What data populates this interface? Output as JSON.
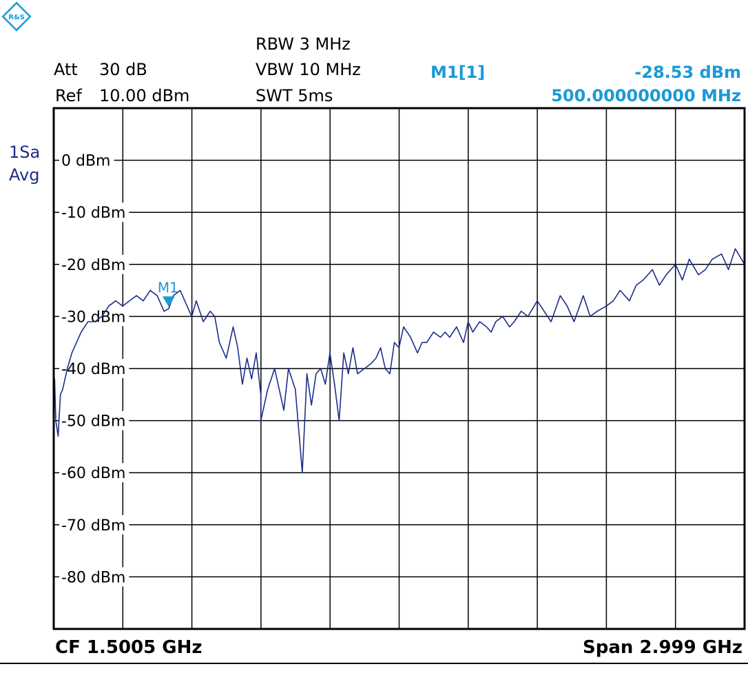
{
  "header": {
    "att_label": "Att",
    "att_value": "30 dB",
    "ref_label": "Ref",
    "ref_value": "10.00 dBm",
    "rbw": "RBW 3 MHz",
    "vbw": "VBW 10 MHz",
    "swt": "SWT 5ms",
    "marker_name": "M1[1]",
    "marker_level": "-28.53 dBm",
    "marker_freq": "500.000000000 MHz"
  },
  "trace_info": {
    "line1": "1Sa",
    "line2": "Avg"
  },
  "footer": {
    "cf": "CF 1.5005 GHz",
    "span": "Span 2.999 GHz"
  },
  "logo_icon": "rohde-schwarz-logo-icon",
  "colors": {
    "trace": "#1c2c8c",
    "marker": "#1a9ad6",
    "grid": "#000000"
  },
  "chart_data": {
    "type": "line",
    "xlabel": "",
    "ylabel": "",
    "x_unit": "GHz",
    "y_unit": "dBm",
    "xlim": [
      0.001,
      3.0
    ],
    "ylim": [
      -90,
      10
    ],
    "grid": true,
    "y_tick_labels": [
      "0 dBm",
      "-10 dBm",
      "-20 dBm",
      "-30 dBm",
      "-40 dBm",
      "-50 dBm",
      "-60 dBm",
      "-70 dBm",
      "-80 dBm"
    ],
    "y_tick_values": [
      0,
      -10,
      -20,
      -30,
      -40,
      -50,
      -60,
      -70,
      -80
    ],
    "marker": {
      "label": "M1",
      "x": 0.5,
      "y": -28.53
    },
    "series": [
      {
        "x": [
          0.001,
          0.005,
          0.01,
          0.02,
          0.03,
          0.04,
          0.06,
          0.08,
          0.1,
          0.12,
          0.15,
          0.18,
          0.21,
          0.24,
          0.27,
          0.3,
          0.33,
          0.36,
          0.39,
          0.42,
          0.45,
          0.48,
          0.5,
          0.52,
          0.55,
          0.58,
          0.6,
          0.62,
          0.65,
          0.68,
          0.7,
          0.72,
          0.75,
          0.78,
          0.8,
          0.82,
          0.84,
          0.86,
          0.88,
          0.9,
          0.9,
          0.93,
          0.96,
          0.99,
          1.0,
          1.02,
          1.05,
          1.08,
          1.1,
          1.12,
          1.14,
          1.16,
          1.18,
          1.2,
          1.22,
          1.24,
          1.26,
          1.28,
          1.3,
          1.32,
          1.35,
          1.38,
          1.4,
          1.42,
          1.44,
          1.46,
          1.48,
          1.5,
          1.52,
          1.55,
          1.58,
          1.6,
          1.62,
          1.65,
          1.68,
          1.7,
          1.72,
          1.75,
          1.78,
          1.8,
          1.82,
          1.85,
          1.88,
          1.9,
          1.92,
          1.95,
          1.98,
          2.0,
          2.03,
          2.06,
          2.1,
          2.13,
          2.16,
          2.2,
          2.23,
          2.26,
          2.3,
          2.33,
          2.36,
          2.4,
          2.43,
          2.46,
          2.5,
          2.53,
          2.56,
          2.6,
          2.63,
          2.66,
          2.7,
          2.73,
          2.76,
          2.8,
          2.83,
          2.86,
          2.9,
          2.93,
          2.96,
          3.0
        ],
        "y": [
          -48,
          -42,
          -50,
          -53,
          -45,
          -44,
          -40,
          -37,
          -35,
          -33,
          -31,
          -31,
          -30,
          -28,
          -27,
          -28,
          -27,
          -26,
          -27,
          -25,
          -26,
          -29,
          -28.5,
          -26,
          -25,
          -28,
          -30,
          -27,
          -31,
          -29,
          -30,
          -35,
          -38,
          -32,
          -36,
          -43,
          -38,
          -42,
          -37,
          -45,
          -50,
          -44,
          -40,
          -46,
          -48,
          -40,
          -44,
          -60,
          -41,
          -47,
          -41,
          -40,
          -43,
          -37,
          -43,
          -50,
          -37,
          -41,
          -36,
          -41,
          -40,
          -39,
          -38,
          -36,
          -40,
          -41,
          -35,
          -36,
          -32,
          -34,
          -37,
          -35,
          -35,
          -33,
          -34,
          -33,
          -34,
          -32,
          -35,
          -31,
          -33,
          -31,
          -32,
          -33,
          -31,
          -30,
          -32,
          -31,
          -29,
          -30,
          -27,
          -29,
          -31,
          -26,
          -28,
          -31,
          -26,
          -30,
          -29,
          -28,
          -27,
          -25,
          -27,
          -24,
          -23,
          -21,
          -24,
          -22,
          -20,
          -23,
          -19,
          -22,
          -21,
          -19,
          -18,
          -21,
          -17,
          -20
        ]
      }
    ]
  }
}
